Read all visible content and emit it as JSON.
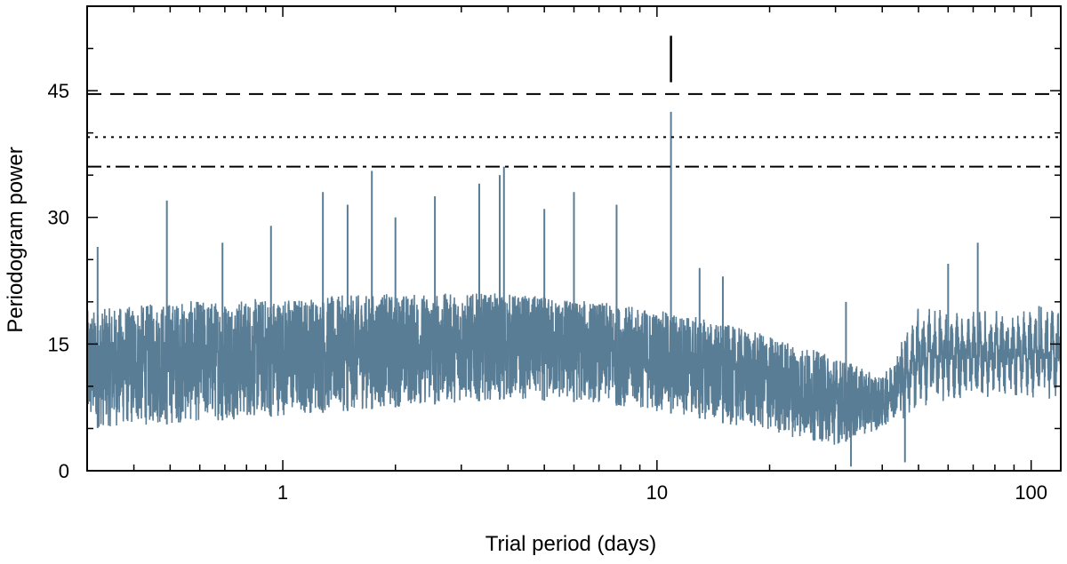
{
  "chart_data": {
    "type": "line",
    "title": "",
    "xlabel": "Trial period (days)",
    "ylabel": "Periodogram power",
    "xscale": "log",
    "xlim": [
      0.3,
      120
    ],
    "ylim": [
      0,
      55
    ],
    "grid": false,
    "legend": "none",
    "x_ticks": [
      1,
      10,
      100
    ],
    "x_tick_labels": [
      "1",
      "10",
      "100"
    ],
    "y_ticks": [
      0,
      15,
      30,
      45
    ],
    "y_tick_labels": [
      "0",
      "15",
      "30",
      "45"
    ],
    "series_color": "#5a7d96",
    "threshold_lines": [
      {
        "style": "dashed",
        "y": 44.6
      },
      {
        "style": "dotted",
        "y": 39.5
      },
      {
        "style": "dashdot",
        "y": 36.0
      }
    ],
    "marker": {
      "x": 10.9,
      "y_from": 46.0,
      "y_to": 51.5
    },
    "envelope": [
      {
        "x": 0.3,
        "low": 5.0,
        "high": 19.0
      },
      {
        "x": 0.5,
        "low": 5.5,
        "high": 20.0
      },
      {
        "x": 1.0,
        "low": 6.5,
        "high": 20.5
      },
      {
        "x": 2.0,
        "low": 7.5,
        "high": 21.0
      },
      {
        "x": 4.0,
        "low": 8.5,
        "high": 21.0
      },
      {
        "x": 7.0,
        "low": 8.0,
        "high": 20.0
      },
      {
        "x": 12.0,
        "low": 6.5,
        "high": 18.5
      },
      {
        "x": 20.0,
        "low": 4.5,
        "high": 16.0
      },
      {
        "x": 30.0,
        "low": 3.0,
        "high": 13.5
      },
      {
        "x": 40.0,
        "low": 5.0,
        "high": 11.0
      },
      {
        "x": 50.0,
        "low": 9.0,
        "high": 18.0
      },
      {
        "x": 70.0,
        "low": 10.0,
        "high": 17.5
      },
      {
        "x": 120.0,
        "low": 10.0,
        "high": 18.0
      }
    ],
    "peaks": [
      {
        "x": 0.3,
        "y": 27.0
      },
      {
        "x": 0.32,
        "y": 26.5
      },
      {
        "x": 0.49,
        "y": 32.0
      },
      {
        "x": 0.69,
        "y": 27.0
      },
      {
        "x": 0.93,
        "y": 29.0
      },
      {
        "x": 1.28,
        "y": 33.0
      },
      {
        "x": 1.49,
        "y": 31.5
      },
      {
        "x": 1.73,
        "y": 35.5
      },
      {
        "x": 2.0,
        "y": 30.0
      },
      {
        "x": 2.55,
        "y": 32.5
      },
      {
        "x": 3.35,
        "y": 34.0
      },
      {
        "x": 3.8,
        "y": 35.0
      },
      {
        "x": 3.9,
        "y": 36.0
      },
      {
        "x": 5.0,
        "y": 31.0
      },
      {
        "x": 6.0,
        "y": 33.0
      },
      {
        "x": 7.8,
        "y": 31.5
      },
      {
        "x": 10.9,
        "y": 42.5
      },
      {
        "x": 13.0,
        "y": 24.0
      },
      {
        "x": 15.0,
        "y": 23.0
      },
      {
        "x": 32.0,
        "y": 20.0
      },
      {
        "x": 33.0,
        "y": 0.5
      },
      {
        "x": 46.0,
        "y": 1.0
      },
      {
        "x": 60.0,
        "y": 24.5
      },
      {
        "x": 72.0,
        "y": 27.0
      },
      {
        "x": 105.0,
        "y": 19.5
      }
    ]
  }
}
